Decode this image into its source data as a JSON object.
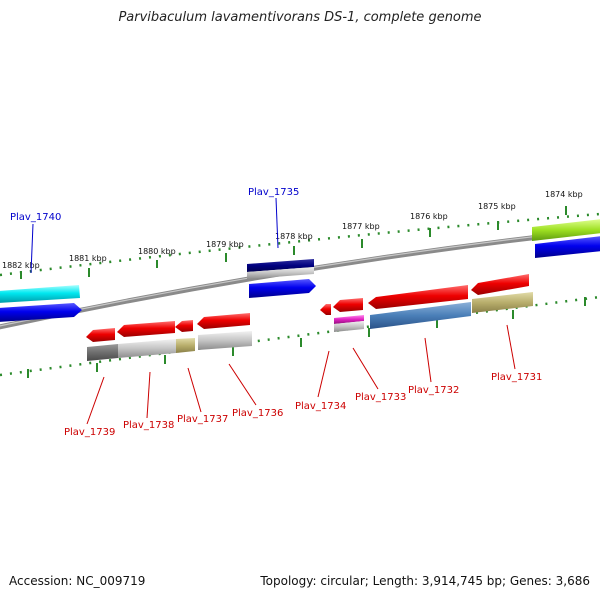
{
  "title": "Parvibaculum lavamentivorans DS-1, complete genome",
  "footer": {
    "accession": "Accession: NC_009719",
    "summary": "Topology: circular; Length: 3,914,745 bp; Genes: 3,686"
  },
  "colors": {
    "background": "#ffffff",
    "backbone": "#777777",
    "tick": "#2b8a2b",
    "label_top": "#0000cc",
    "label_bottom": "#cc0000"
  },
  "ruler": {
    "unit": "kbp",
    "ticks": [
      "1882 kbp",
      "1881 kbp",
      "1880 kbp",
      "1879 kbp",
      "1878 kbp",
      "1877 kbp",
      "1876 kbp",
      "1875 kbp",
      "1874 kbp"
    ]
  },
  "genes_top": [
    {
      "name": "Plav_1740"
    },
    {
      "name": "Plav_1735"
    }
  ],
  "genes_bottom": [
    {
      "name": "Plav_1739"
    },
    {
      "name": "Plav_1738"
    },
    {
      "name": "Plav_1737"
    },
    {
      "name": "Plav_1736"
    },
    {
      "name": "Plav_1734"
    },
    {
      "name": "Plav_1733"
    },
    {
      "name": "Plav_1732"
    },
    {
      "name": "Plav_1731"
    }
  ]
}
